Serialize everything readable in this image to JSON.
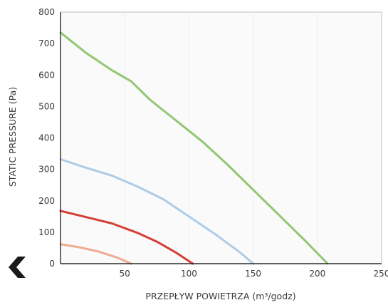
{
  "chart_data": {
    "type": "line",
    "title": "",
    "xlabel": "PRZEPŁYW POWIETRZA (m³/godz)",
    "ylabel": "STATIC PRESSURE (Pa)",
    "xlim": [
      0,
      250
    ],
    "ylim": [
      0,
      800
    ],
    "x_ticks": [
      50,
      100,
      150,
      200,
      250
    ],
    "x_tick_labels": [
      "50",
      "100",
      "150",
      "200",
      "250"
    ],
    "y_ticks": [
      0,
      100,
      200,
      300,
      400,
      500,
      600,
      700,
      800
    ],
    "y_tick_labels": [
      "0",
      "100",
      "200",
      "300",
      "400",
      "500",
      "600",
      "700",
      "800"
    ],
    "grid": "vertical",
    "legend": "none",
    "series": [
      {
        "color": "#8cc46a",
        "points": [
          [
            0,
            735
          ],
          [
            20,
            670
          ],
          [
            40,
            615
          ],
          [
            55,
            580
          ],
          [
            70,
            520
          ],
          [
            90,
            455
          ],
          [
            110,
            390
          ],
          [
            130,
            315
          ],
          [
            150,
            235
          ],
          [
            170,
            155
          ],
          [
            190,
            75
          ],
          [
            208,
            0
          ]
        ]
      },
      {
        "color": "#a9c9e6",
        "points": [
          [
            0,
            332
          ],
          [
            20,
            305
          ],
          [
            40,
            280
          ],
          [
            60,
            245
          ],
          [
            80,
            205
          ],
          [
            100,
            150
          ],
          [
            120,
            95
          ],
          [
            140,
            35
          ],
          [
            150,
            0
          ]
        ]
      },
      {
        "color": "#d2352a",
        "points": [
          [
            0,
            168
          ],
          [
            20,
            148
          ],
          [
            40,
            128
          ],
          [
            60,
            98
          ],
          [
            75,
            70
          ],
          [
            90,
            35
          ],
          [
            103,
            0
          ]
        ]
      },
      {
        "color": "#eea88d",
        "points": [
          [
            0,
            62
          ],
          [
            15,
            52
          ],
          [
            30,
            38
          ],
          [
            45,
            18
          ],
          [
            55,
            0
          ]
        ]
      }
    ]
  },
  "nav": {
    "back_icon": "chevron-left-icon",
    "color": "#1a1a1a"
  }
}
